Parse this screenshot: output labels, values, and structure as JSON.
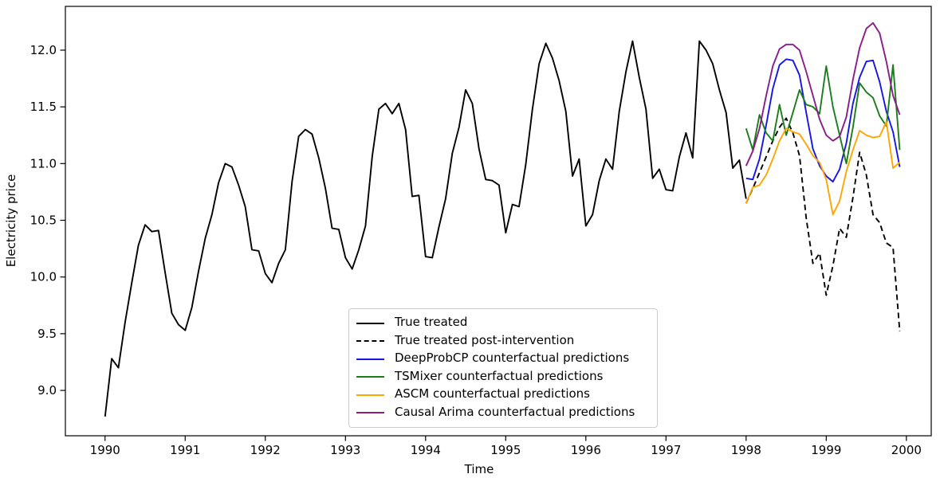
{
  "figure_title": "",
  "axes": {
    "xlabel": "Time",
    "ylabel": "Electricity price",
    "x_tick_labels": [
      "1990",
      "1991",
      "1992",
      "1993",
      "1994",
      "1995",
      "1996",
      "1997",
      "1998",
      "1999",
      "2000"
    ],
    "y_tick_labels": [
      "9.0",
      "9.5",
      "10.0",
      "10.5",
      "11.0",
      "11.5",
      "12.0"
    ]
  },
  "chart_data": {
    "type": "line",
    "title": "",
    "xlabel": "Time",
    "ylabel": "Electricity price",
    "xlim": [
      1989.505,
      2000.31
    ],
    "ylim": [
      8.6,
      12.386
    ],
    "x_ticks": [
      1990,
      1991,
      1992,
      1993,
      1994,
      1995,
      1996,
      1997,
      1998,
      1999,
      2000
    ],
    "y_ticks": [
      9.0,
      9.5,
      10.0,
      10.5,
      11.0,
      11.5,
      12.0
    ],
    "grid": false,
    "legend_position": "lower center-left inside axes",
    "x_sampling": "monthly",
    "series": [
      {
        "name": "True treated",
        "color": "#000000",
        "line_style": "solid",
        "start_year": 1990.0,
        "step_years": 0.0833333,
        "values": [
          8.77,
          9.28,
          9.2,
          9.6,
          9.95,
          10.28,
          10.46,
          10.4,
          10.41,
          10.04,
          9.68,
          9.58,
          9.53,
          9.73,
          10.05,
          10.34,
          10.55,
          10.83,
          11.0,
          10.97,
          10.81,
          10.62,
          10.24,
          10.23,
          10.03,
          9.95,
          10.12,
          10.24,
          10.84,
          11.24,
          11.3,
          11.26,
          11.05,
          10.78,
          10.43,
          10.42,
          10.17,
          10.07,
          10.24,
          10.45,
          11.06,
          11.48,
          11.53,
          11.44,
          11.53,
          11.3,
          10.71,
          10.72,
          10.18,
          10.17,
          10.44,
          10.69,
          11.09,
          11.32,
          11.65,
          11.53,
          11.13,
          10.86,
          10.85,
          10.81,
          10.39,
          10.64,
          10.62,
          10.99,
          11.48,
          11.88,
          12.06,
          11.93,
          11.73,
          11.46,
          10.89,
          11.04,
          10.45,
          10.55,
          10.85,
          11.04,
          10.95,
          11.46,
          11.81,
          12.08,
          11.76,
          11.48,
          10.87,
          10.95,
          10.77,
          10.76,
          11.06,
          11.27,
          11.05,
          12.08,
          12.0,
          11.88,
          11.65,
          11.45,
          10.96,
          11.03,
          10.69
        ]
      },
      {
        "name": "True treated post-intervention",
        "color": "#000000",
        "line_style": "dashed",
        "start_year": 1998.0,
        "step_years": 0.0833333,
        "values": [
          10.65,
          10.78,
          10.92,
          11.06,
          11.2,
          11.32,
          11.4,
          11.27,
          11.07,
          10.52,
          10.12,
          10.21,
          9.84,
          10.1,
          10.43,
          10.35,
          10.7,
          11.1,
          10.9,
          10.55,
          10.48,
          10.3,
          10.26,
          9.52
        ]
      },
      {
        "name": "DeepProbCP counterfactual predictions",
        "color": "#1515e8",
        "line_style": "solid",
        "start_year": 1998.0,
        "step_years": 0.0833333,
        "values": [
          10.87,
          10.86,
          11.04,
          11.34,
          11.66,
          11.87,
          11.92,
          11.91,
          11.78,
          11.45,
          11.13,
          10.98,
          10.89,
          10.84,
          10.95,
          11.18,
          11.53,
          11.76,
          11.9,
          11.91,
          11.72,
          11.46,
          11.28,
          10.97
        ]
      },
      {
        "name": "TSMixer counterfactual predictions",
        "color": "#1a7d1a",
        "line_style": "solid",
        "start_year": 1998.0,
        "step_years": 0.0833333,
        "values": [
          11.31,
          11.12,
          11.43,
          11.27,
          11.2,
          11.52,
          11.25,
          11.45,
          11.65,
          11.52,
          11.5,
          11.44,
          11.86,
          11.5,
          11.25,
          11.0,
          11.32,
          11.71,
          11.63,
          11.58,
          11.42,
          11.33,
          11.87,
          11.12
        ]
      },
      {
        "name": "ASCM counterfactual predictions",
        "color": "#ffa500",
        "line_style": "solid",
        "start_year": 1998.0,
        "step_years": 0.0833333,
        "values": [
          10.65,
          10.79,
          10.81,
          10.9,
          11.04,
          11.2,
          11.31,
          11.28,
          11.26,
          11.17,
          11.07,
          11.01,
          10.86,
          10.55,
          10.67,
          10.93,
          11.12,
          11.29,
          11.25,
          11.23,
          11.24,
          11.37,
          10.96,
          11.01
        ]
      },
      {
        "name": "Causal Arima counterfactual predictions",
        "color": "#8a1c8a",
        "line_style": "solid",
        "start_year": 1998.0,
        "step_years": 0.0833333,
        "values": [
          10.98,
          11.11,
          11.31,
          11.6,
          11.86,
          12.01,
          12.05,
          12.05,
          12.0,
          11.81,
          11.6,
          11.39,
          11.25,
          11.2,
          11.24,
          11.41,
          11.74,
          12.02,
          12.19,
          12.24,
          12.15,
          11.9,
          11.6,
          11.43
        ]
      }
    ]
  }
}
